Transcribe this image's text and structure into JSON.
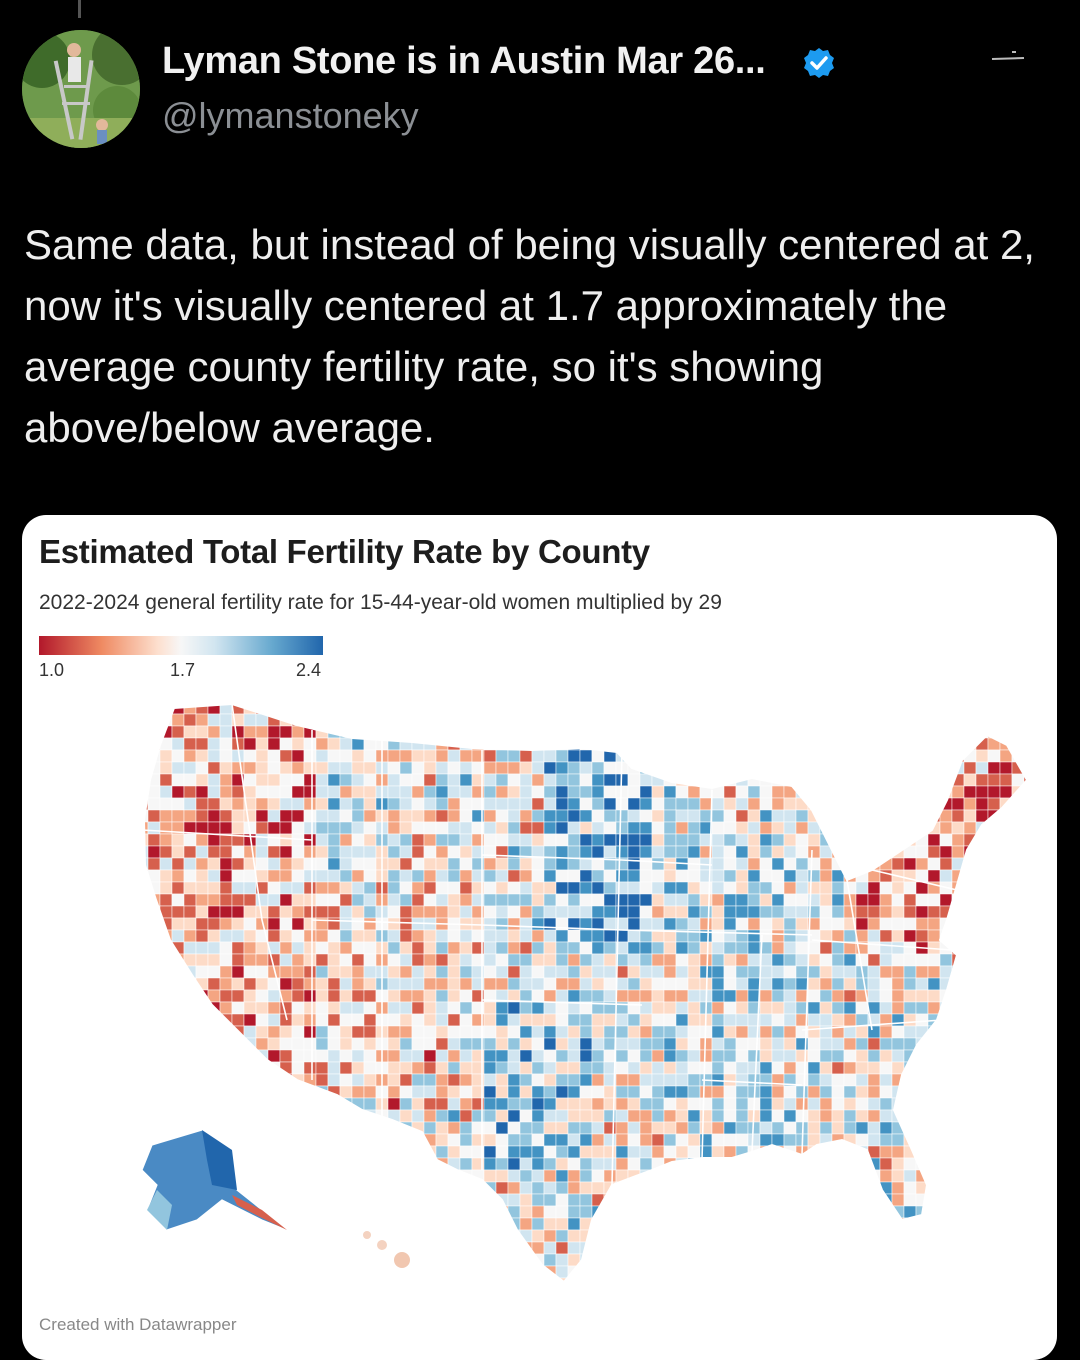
{
  "tweet": {
    "author_name": "Lyman Stone is in Austin Mar 26...",
    "handle": "@lymanstoneky",
    "text": "Same data, but instead of being visually centered at 2, now it's visually centered at 1.7 approximately the average county fertility rate, so it's showing above/below average."
  },
  "icons": {
    "avatar": "avatar-photo",
    "verified": "verified-badge-icon"
  },
  "card": {
    "title": "Estimated Total Fertility Rate by County",
    "subtitle": "2022-2024 general fertility rate for 15-44-year-old women multiplied by 29",
    "credit": "Created with Datawrapper"
  },
  "chart_data": {
    "type": "heatmap",
    "title": "Estimated Total Fertility Rate by County",
    "subtitle": "2022-2024 general fertility rate for 15-44-year-old women multiplied by 29",
    "scale": {
      "min": 1.0,
      "mid": 1.7,
      "max": 2.4,
      "tick_labels": [
        "1.0",
        "1.7",
        "2.4"
      ],
      "colors": [
        "#b2182b",
        "#f7f7f7",
        "#2166ac"
      ]
    },
    "geography": "US counties"
  },
  "colors": {
    "background": "#000000",
    "card": "#ffffff",
    "low": "#b2182b",
    "mid": "#f7f7f7",
    "high": "#2166ac"
  }
}
